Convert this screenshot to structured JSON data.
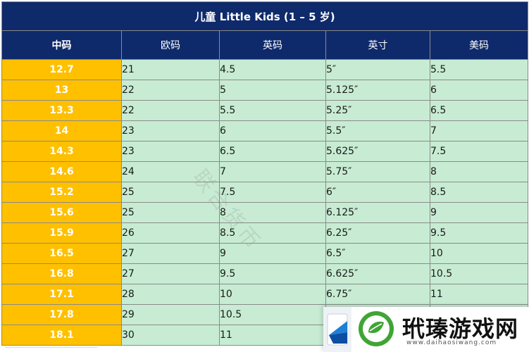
{
  "table": {
    "title": "儿童 Little Kids (1 – 5 岁)",
    "headers": [
      "中码",
      "欧码",
      "英码",
      "英寸",
      "美码"
    ],
    "rows": [
      [
        "12.7",
        "21",
        "4.5",
        "5″",
        "5.5"
      ],
      [
        "13",
        "22",
        "5",
        "5.125″",
        "6"
      ],
      [
        "13.3",
        "22",
        "5.5",
        "5.25″",
        "6.5"
      ],
      [
        "14",
        "23",
        "6",
        "5.5″",
        "7"
      ],
      [
        "14.3",
        "23",
        "6.5",
        "5.625″",
        "7.5"
      ],
      [
        "14.6",
        "24",
        "7",
        "5.75″",
        "8"
      ],
      [
        "15.2",
        "25",
        "7.5",
        "6″",
        "8.5"
      ],
      [
        "15.6",
        "25",
        "8",
        "6.125″",
        "9"
      ],
      [
        "15.9",
        "26",
        "8.5",
        "6.25″",
        "9.5"
      ],
      [
        "16.5",
        "27",
        "9",
        "6.5″",
        "10"
      ],
      [
        "16.8",
        "27",
        "9.5",
        "6.625″",
        "10.5"
      ],
      [
        "17.1",
        "28",
        "10",
        "6.75″",
        "11"
      ],
      [
        "17.8",
        "29",
        "10.5",
        "",
        ""
      ],
      [
        "18.1",
        "30",
        "11",
        "",
        ""
      ]
    ]
  },
  "watermark": {
    "text": "联合货币"
  },
  "logo": {
    "name": "玳瑧游戏网",
    "url": "www.daihaosiwang.com",
    "colors": {
      "leaf": "#3fa535",
      "card": "#1f7fd6"
    }
  }
}
